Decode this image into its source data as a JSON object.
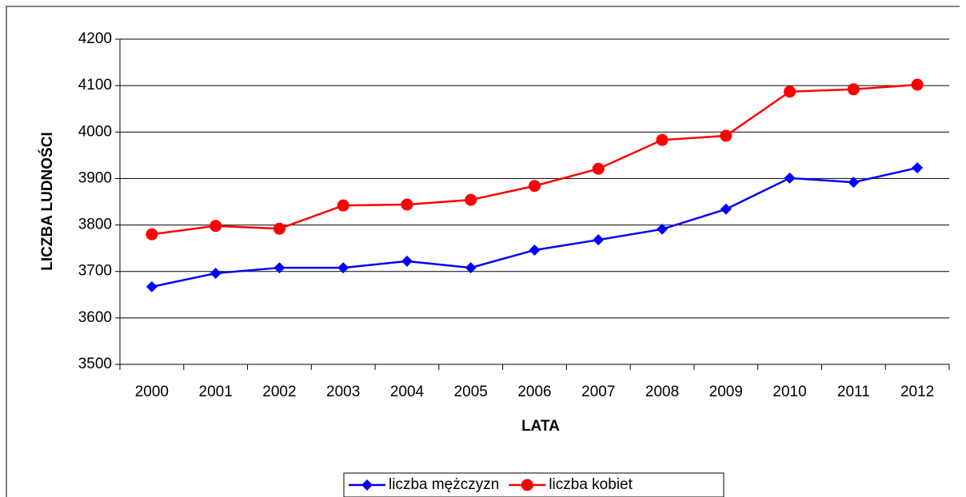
{
  "chart_data": {
    "type": "line",
    "xlabel": "LATA",
    "ylabel": "LICZBA LUDNOŚCI",
    "categories": [
      "2000",
      "2001",
      "2002",
      "2003",
      "2004",
      "2005",
      "2006",
      "2007",
      "2008",
      "2009",
      "2010",
      "2011",
      "2012"
    ],
    "series": [
      {
        "name": "liczba mężczyzn",
        "color": "#0000ff",
        "marker": "diamond",
        "values": [
          3667,
          3696,
          3708,
          3708,
          3722,
          3708,
          3746,
          3768,
          3791,
          3834,
          3901,
          3892,
          3923
        ]
      },
      {
        "name": "liczba kobiet",
        "color": "#ff0000",
        "marker": "circle",
        "values": [
          3780,
          3798,
          3792,
          3842,
          3844,
          3854,
          3884,
          3921,
          3983,
          3992,
          4087,
          4092,
          4102
        ]
      }
    ],
    "ylim": [
      3500,
      4200
    ],
    "yticks": [
      3500,
      3600,
      3700,
      3800,
      3900,
      4000,
      4100,
      4200
    ],
    "grid": true,
    "legend": "bottom"
  }
}
